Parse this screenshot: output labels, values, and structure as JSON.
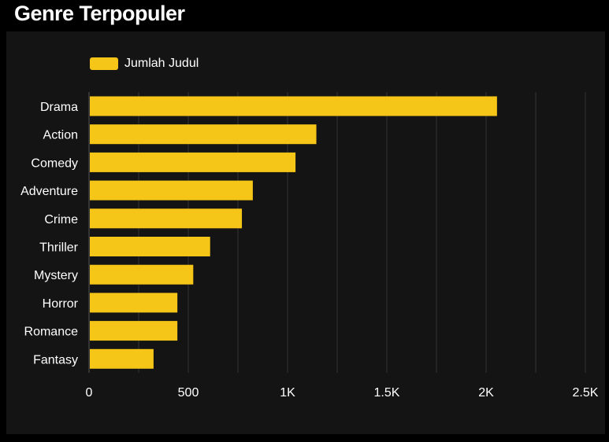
{
  "title": "Genre Terpopuler",
  "colors": {
    "bar": "#f5c518",
    "background": "#141414",
    "grid": "#333333",
    "text": "#ffffff"
  },
  "chart_data": {
    "type": "bar",
    "orientation": "horizontal",
    "title": "Genre Terpopuler",
    "categories": [
      "Drama",
      "Action",
      "Comedy",
      "Adventure",
      "Crime",
      "Thriller",
      "Mystery",
      "Horror",
      "Romance",
      "Fantasy"
    ],
    "series": [
      {
        "name": "Jumlah Judul",
        "values": [
          2055,
          1145,
          1040,
          825,
          770,
          610,
          525,
          445,
          445,
          325
        ]
      }
    ],
    "xlim": [
      0,
      2500
    ],
    "xticks": [
      0,
      500,
      1000,
      1500,
      2000,
      2500
    ],
    "xtick_labels": [
      "0",
      "500",
      "1K",
      "1.5K",
      "2K",
      "2.5K"
    ],
    "xlabel": "",
    "ylabel": "",
    "grid": true,
    "legend_position": "top-left"
  }
}
